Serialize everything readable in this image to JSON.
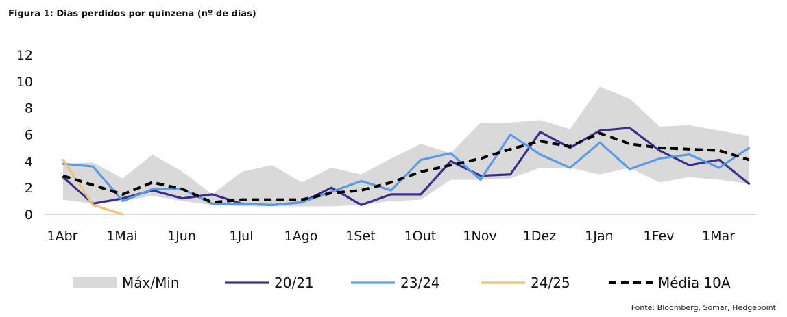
{
  "title": "Figura 1: Dias perdidos por quinzena (nº de dias)",
  "source": "Fonte: Bloomberg, Somar, Hedgepoint",
  "colors": {
    "band": "#d9d9d9",
    "s2021": "#3a2e8f",
    "s2324": "#5b9be6",
    "s2425": "#f0c272",
    "media": "#000000",
    "axis": "#bfbfbf"
  },
  "chart_data": {
    "type": "line",
    "title": "Figura 1: Dias perdidos por quinzena (nº de dias)",
    "xlabel": "",
    "ylabel": "",
    "ylim": [
      0,
      12
    ],
    "yticks": [
      "0",
      "2",
      "4",
      "6",
      "8",
      "10",
      "12"
    ],
    "xticks": [
      {
        "label": "1Abr",
        "x": 0
      },
      {
        "label": "1Mai",
        "x": 2
      },
      {
        "label": "1Jun",
        "x": 4
      },
      {
        "label": "1Jul",
        "x": 6
      },
      {
        "label": "1Ago",
        "x": 8
      },
      {
        "label": "1Set",
        "x": 10
      },
      {
        "label": "1Out",
        "x": 12
      },
      {
        "label": "1Nov",
        "x": 14
      },
      {
        "label": "1Dez",
        "x": 16
      },
      {
        "label": "1Jan",
        "x": 18
      },
      {
        "label": "1Fev",
        "x": 20
      },
      {
        "label": "1Mar",
        "x": 22
      }
    ],
    "grid": false,
    "legend_position": "bottom",
    "band": {
      "name": "Máx/Min",
      "max": [
        3.8,
        3.9,
        2.7,
        4.5,
        3.2,
        1.5,
        3.2,
        3.7,
        2.4,
        3.5,
        3.0,
        4.2,
        5.3,
        4.6,
        6.9,
        6.9,
        7.1,
        6.4,
        9.6,
        8.7,
        6.6,
        6.7,
        6.3,
        5.9
      ],
      "min": [
        1.1,
        0.8,
        1.0,
        1.4,
        1.0,
        0.7,
        0.6,
        0.6,
        0.6,
        0.6,
        0.7,
        1.0,
        1.1,
        2.6,
        2.6,
        2.7,
        3.5,
        3.5,
        3.0,
        3.5,
        2.4,
        2.8,
        2.6,
        2.3
      ]
    },
    "series": [
      {
        "name": "20/21",
        "color": "#3a2e8f",
        "values": [
          2.8,
          0.8,
          1.2,
          1.8,
          1.2,
          1.5,
          0.8,
          0.7,
          0.9,
          2.0,
          0.7,
          1.5,
          1.5,
          4.0,
          2.9,
          3.0,
          6.2,
          5.0,
          6.3,
          6.5,
          4.8,
          3.7,
          4.1,
          2.3
        ]
      },
      {
        "name": "23/24",
        "color": "#5b9be6",
        "values": [
          3.8,
          3.6,
          1.0,
          1.9,
          1.9,
          0.8,
          0.8,
          0.7,
          0.9,
          1.7,
          2.5,
          1.8,
          4.1,
          4.6,
          2.6,
          6.0,
          4.5,
          3.5,
          5.4,
          3.4,
          4.2,
          4.5,
          3.5,
          5.0
        ]
      },
      {
        "name": "24/25",
        "color": "#f0c272",
        "values": [
          4.1,
          0.7,
          0.0
        ]
      },
      {
        "name": "Média 10A",
        "color": "#000000",
        "dashed": true,
        "values": [
          2.9,
          2.2,
          1.5,
          2.4,
          1.9,
          0.9,
          1.1,
          1.1,
          1.1,
          1.6,
          1.8,
          2.4,
          3.2,
          3.7,
          4.2,
          4.9,
          5.5,
          5.1,
          6.1,
          5.3,
          5.0,
          4.9,
          4.8,
          4.1
        ]
      }
    ],
    "legend": [
      {
        "label": "Máx/Min",
        "kind": "band"
      },
      {
        "label": "20/21",
        "kind": "line",
        "color": "#3a2e8f"
      },
      {
        "label": "23/24",
        "kind": "line",
        "color": "#5b9be6"
      },
      {
        "label": "24/25",
        "kind": "line",
        "color": "#f0c272"
      },
      {
        "label": "Média 10A",
        "kind": "dashed",
        "color": "#000000"
      }
    ]
  }
}
